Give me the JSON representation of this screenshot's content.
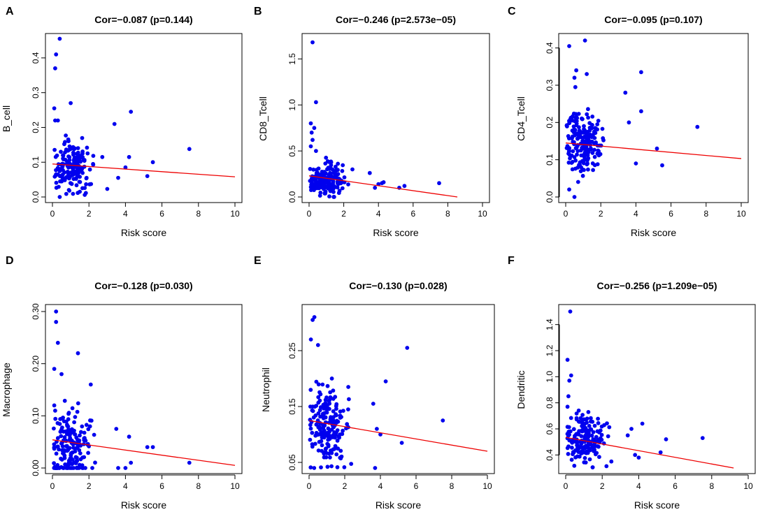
{
  "point_color": "#0000ee",
  "line_color": "#ee0000",
  "chart_data": [
    {
      "type": "scatter",
      "panel_label": "A",
      "title": "Cor=−0.087 (p=0.144)",
      "xlabel": "Risk score",
      "ylabel": "B_cell",
      "xlim": [
        0,
        10
      ],
      "ylim": [
        0.0,
        0.45
      ],
      "xticks": [
        0,
        2,
        4,
        6,
        8,
        10
      ],
      "yticks": [
        0.0,
        0.1,
        0.2,
        0.3,
        0.4
      ],
      "ytick_labels": [
        "0.0",
        "0.1",
        "0.2",
        "0.3",
        "0.4"
      ],
      "regression": {
        "x": [
          0,
          10
        ],
        "y": [
          0.095,
          0.058
        ]
      },
      "points": {
        "outliers": [
          [
            0.4,
            0.455
          ],
          [
            0.2,
            0.41
          ],
          [
            0.15,
            0.37
          ],
          [
            0.1,
            0.255
          ],
          [
            0.15,
            0.22
          ],
          [
            0.3,
            0.22
          ],
          [
            1.0,
            0.27
          ],
          [
            4.3,
            0.245
          ],
          [
            3.4,
            0.21
          ],
          [
            7.5,
            0.138
          ],
          [
            5.5,
            0.1
          ],
          [
            4.2,
            0.115
          ],
          [
            5.2,
            0.06
          ],
          [
            3.6,
            0.055
          ],
          [
            4.0,
            0.085
          ],
          [
            0.4,
            0.0
          ],
          [
            0.9,
            0.02
          ]
        ],
        "cluster": {
          "x_mean": 1.05,
          "x_sd": 0.55,
          "y_mean": 0.09,
          "y_sd": 0.035,
          "n": 170,
          "seed": 11
        }
      }
    },
    {
      "type": "scatter",
      "panel_label": "B",
      "title": "Cor=−0.246 (p=2.573e−05)",
      "xlabel": "Risk score",
      "ylabel": "CD8_Tcell",
      "xlim": [
        0,
        10
      ],
      "ylim": [
        0.0,
        1.7
      ],
      "xticks": [
        0,
        2,
        4,
        6,
        8,
        10
      ],
      "yticks": [
        0.0,
        0.5,
        1.0,
        1.5
      ],
      "ytick_labels": [
        "0.0",
        "0.5",
        "1.0",
        "1.5"
      ],
      "regression": {
        "x": [
          0,
          8.55
        ],
        "y": [
          0.23,
          0.0
        ]
      },
      "points": {
        "outliers": [
          [
            0.2,
            1.68
          ],
          [
            0.4,
            1.03
          ],
          [
            0.1,
            0.8
          ],
          [
            0.3,
            0.75
          ],
          [
            0.15,
            0.7
          ],
          [
            0.2,
            0.62
          ],
          [
            0.1,
            0.55
          ],
          [
            0.4,
            0.5
          ],
          [
            7.5,
            0.15
          ],
          [
            5.5,
            0.12
          ],
          [
            5.2,
            0.1
          ],
          [
            4.2,
            0.15
          ],
          [
            4.3,
            0.16
          ],
          [
            3.8,
            0.1
          ],
          [
            4.0,
            0.14
          ],
          [
            3.5,
            0.26
          ],
          [
            2.5,
            0.3
          ]
        ],
        "cluster": {
          "x_mean": 1.0,
          "x_sd": 0.5,
          "y_mean": 0.18,
          "y_sd": 0.08,
          "n": 180,
          "seed": 23
        }
      }
    },
    {
      "type": "scatter",
      "panel_label": "C",
      "title": "Cor=−0.095 (p=0.107)",
      "xlabel": "Risk score",
      "ylabel": "CD4_Tcell",
      "xlim": [
        0,
        10
      ],
      "ylim": [
        0.0,
        0.42
      ],
      "xticks": [
        0,
        2,
        4,
        6,
        8,
        10
      ],
      "yticks": [
        0.0,
        0.1,
        0.2,
        0.3,
        0.4
      ],
      "ytick_labels": [
        "0.0",
        "0.1",
        "0.2",
        "0.3",
        "0.4"
      ],
      "regression": {
        "x": [
          0,
          10
        ],
        "y": [
          0.145,
          0.103
        ]
      },
      "points": {
        "outliers": [
          [
            1.1,
            0.42
          ],
          [
            0.2,
            0.405
          ],
          [
            0.6,
            0.34
          ],
          [
            0.5,
            0.32
          ],
          [
            1.2,
            0.33
          ],
          [
            0.55,
            0.295
          ],
          [
            4.3,
            0.335
          ],
          [
            3.4,
            0.28
          ],
          [
            4.3,
            0.23
          ],
          [
            3.6,
            0.2
          ],
          [
            7.5,
            0.188
          ],
          [
            5.2,
            0.13
          ],
          [
            5.5,
            0.085
          ],
          [
            4.0,
            0.09
          ],
          [
            0.2,
            0.02
          ],
          [
            0.5,
            0.0
          ]
        ],
        "cluster": {
          "x_mean": 1.0,
          "x_sd": 0.55,
          "y_mean": 0.14,
          "y_sd": 0.04,
          "n": 190,
          "seed": 37
        }
      }
    },
    {
      "type": "scatter",
      "panel_label": "D",
      "title": "Cor=−0.128 (p=0.030)",
      "xlabel": "Risk score",
      "ylabel": "Macrophage",
      "xlim": [
        0,
        10
      ],
      "ylim": [
        0.0,
        0.3
      ],
      "xticks": [
        0,
        2,
        4,
        6,
        8,
        10
      ],
      "yticks": [
        0.0,
        0.1,
        0.2,
        0.3
      ],
      "ytick_labels": [
        "0.00",
        "0.10",
        "0.20",
        "0.30"
      ],
      "regression": {
        "x": [
          0,
          10
        ],
        "y": [
          0.054,
          0.005
        ]
      },
      "points": {
        "outliers": [
          [
            0.2,
            0.3
          ],
          [
            0.2,
            0.28
          ],
          [
            0.3,
            0.24
          ],
          [
            0.1,
            0.19
          ],
          [
            0.5,
            0.18
          ],
          [
            1.4,
            0.22
          ],
          [
            2.1,
            0.16
          ],
          [
            0.1,
            0.12
          ],
          [
            5.2,
            0.04
          ],
          [
            5.5,
            0.04
          ],
          [
            7.5,
            0.01
          ],
          [
            4.2,
            0.06
          ],
          [
            3.5,
            0.075
          ],
          [
            4.3,
            0.01
          ],
          [
            4.0,
            0.0
          ],
          [
            3.6,
            0.0
          ]
        ],
        "cluster": {
          "x_mean": 1.0,
          "x_sd": 0.6,
          "y_mean": 0.035,
          "y_sd": 0.035,
          "n": 180,
          "seed": 41,
          "floor": 0.0
        }
      }
    },
    {
      "type": "scatter",
      "panel_label": "E",
      "title": "Cor=−0.130 (p=0.028)",
      "xlabel": "Risk score",
      "ylabel": "Neutrophil",
      "xlim": [
        0,
        10
      ],
      "ylim": [
        0.04,
        0.32
      ],
      "xticks": [
        0,
        2,
        4,
        6,
        8,
        10
      ],
      "yticks": [
        0.05,
        0.15,
        0.25
      ],
      "ytick_labels": [
        "0.05",
        "0.15",
        "0.25"
      ],
      "regression": {
        "x": [
          0,
          10
        ],
        "y": [
          0.125,
          0.07
        ]
      },
      "points": {
        "outliers": [
          [
            0.3,
            0.31
          ],
          [
            0.2,
            0.305
          ],
          [
            0.1,
            0.27
          ],
          [
            0.5,
            0.26
          ],
          [
            5.5,
            0.255
          ],
          [
            4.3,
            0.195
          ],
          [
            7.5,
            0.125
          ],
          [
            3.6,
            0.155
          ],
          [
            3.8,
            0.11
          ],
          [
            4.0,
            0.1
          ],
          [
            5.2,
            0.085
          ],
          [
            3.7,
            0.04
          ],
          [
            2.2,
            0.185
          ]
        ],
        "cluster": {
          "x_mean": 1.0,
          "x_sd": 0.55,
          "y_mean": 0.115,
          "y_sd": 0.04,
          "n": 190,
          "seed": 53
        }
      }
    },
    {
      "type": "scatter",
      "panel_label": "F",
      "title": "Cor=−0.256 (p=1.209e−05)",
      "xlabel": "Risk score",
      "ylabel": "Dendritic",
      "xlim": [
        0,
        10
      ],
      "ylim": [
        0.3,
        1.5
      ],
      "xticks": [
        0,
        2,
        4,
        6,
        8,
        10
      ],
      "yticks": [
        0.4,
        0.6,
        0.8,
        1.0,
        1.2,
        1.4
      ],
      "ytick_labels": [
        "0.4",
        "0.6",
        "0.8",
        "1.0",
        "1.2",
        "1.4"
      ],
      "regression": {
        "x": [
          0,
          9.2
        ],
        "y": [
          0.535,
          0.3
        ]
      },
      "points": {
        "outliers": [
          [
            0.25,
            1.5
          ],
          [
            0.1,
            1.13
          ],
          [
            0.3,
            1.01
          ],
          [
            0.2,
            0.97
          ],
          [
            0.15,
            0.85
          ],
          [
            0.1,
            0.77
          ],
          [
            7.5,
            0.53
          ],
          [
            5.5,
            0.52
          ],
          [
            5.2,
            0.42
          ],
          [
            4.2,
            0.64
          ],
          [
            3.6,
            0.6
          ],
          [
            3.8,
            0.4
          ],
          [
            4.0,
            0.38
          ],
          [
            3.4,
            0.55
          ],
          [
            2.5,
            0.35
          ]
        ],
        "cluster": {
          "x_mean": 1.0,
          "x_sd": 0.5,
          "y_mean": 0.5,
          "y_sd": 0.09,
          "n": 175,
          "seed": 67
        }
      }
    }
  ]
}
